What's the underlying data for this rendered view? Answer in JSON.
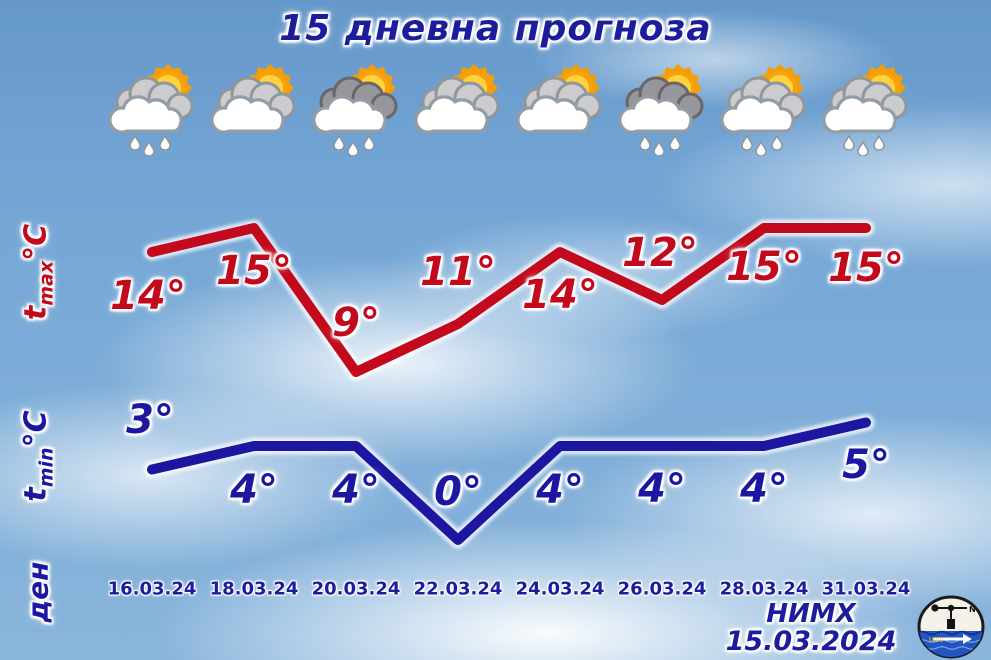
{
  "title": "15 дневна прогноза",
  "axes": {
    "tmax_symbol": "t",
    "tmax_sub": "max",
    "tmax_unit": "°C",
    "tmin_symbol": "t",
    "tmin_sub": "min",
    "tmin_unit": "°C",
    "day_axis_label": "ден"
  },
  "days": [
    {
      "date": "16.03.24",
      "icon": "sun-cloud-rain",
      "tmax": "14°",
      "tmin": "3°"
    },
    {
      "date": "18.03.24",
      "icon": "sun-cloud",
      "tmax": "15°",
      "tmin": "4°"
    },
    {
      "date": "20.03.24",
      "icon": "sun-dark-cloud-rain",
      "tmax": "9°",
      "tmin": "4°"
    },
    {
      "date": "22.03.24",
      "icon": "sun-cloud",
      "tmax": "11°",
      "tmin": "0°"
    },
    {
      "date": "24.03.24",
      "icon": "sun-cloud",
      "tmax": "14°",
      "tmin": "4°"
    },
    {
      "date": "26.03.24",
      "icon": "sun-dark-cloud-rain",
      "tmax": "12°",
      "tmin": "4°"
    },
    {
      "date": "28.03.24",
      "icon": "sun-cloud-rain",
      "tmax": "15°",
      "tmin": "4°"
    },
    {
      "date": "31.03.24",
      "icon": "sun-cloud-rain",
      "tmax": "15°",
      "tmin": "5°"
    }
  ],
  "chart_data": {
    "type": "line",
    "title": "15 дневна прогноза",
    "x": [
      "16.03.24",
      "18.03.24",
      "20.03.24",
      "22.03.24",
      "24.03.24",
      "26.03.24",
      "28.03.24",
      "31.03.24"
    ],
    "xlabel": "ден",
    "series": [
      {
        "name": "tmax °C",
        "color": "#c20a1c",
        "values": [
          14,
          15,
          9,
          11,
          14,
          12,
          15,
          15
        ]
      },
      {
        "name": "tmin °C",
        "color": "#1c16a0",
        "values": [
          3,
          4,
          4,
          0,
          4,
          4,
          4,
          5
        ]
      }
    ],
    "grid": false,
    "legend_position": "rotated labels on left side",
    "point_labels_shown": true
  },
  "footer": {
    "org": "НИМХ",
    "issued": "15.03.2024",
    "logo": "nimh-hydromet-logo"
  },
  "colors": {
    "tmax": "#c20a1c",
    "tmin": "#1c16a0",
    "heading": "#1c1c9c",
    "sky": "#79aad8"
  }
}
